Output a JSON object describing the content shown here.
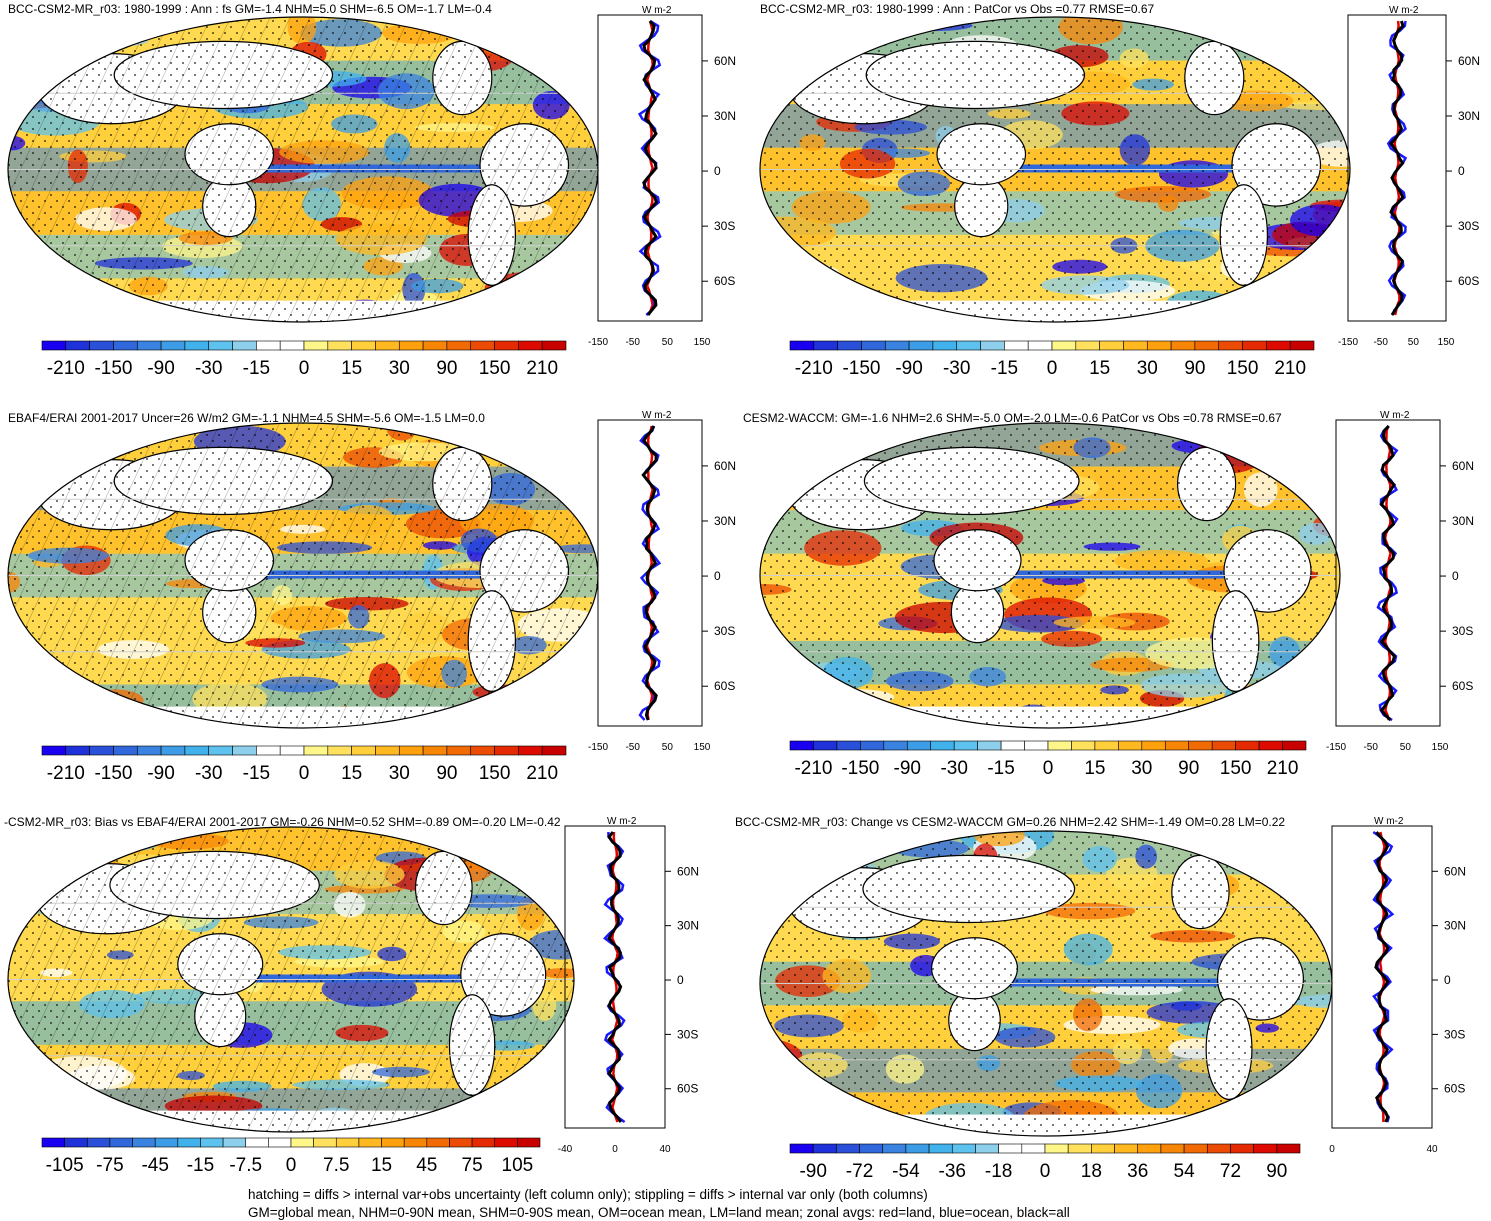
{
  "figure": {
    "panels": [
      {
        "title": "BCC-CSM2-MR_r03: 1980-1999 : Ann : fs GM=-1.4 NHM=5.0 SHM=-6.5 OM=-1.7 LM=-0.4",
        "colorbar_labels": [
          "-210",
          "-150",
          "-90",
          "-30",
          "-15",
          "0",
          "15",
          "30",
          "90",
          "150",
          "210"
        ],
        "hatched": true
      },
      {
        "title": "BCC-CSM2-MR_r03: 1980-1999 : Ann : PatCor vs Obs =0.77 RMSE=0.67",
        "colorbar_labels": [
          "-210",
          "-150",
          "-90",
          "-30",
          "-15",
          "0",
          "15",
          "30",
          "90",
          "150",
          "210"
        ],
        "hatched": false
      },
      {
        "title": "EBAF4/ERAI 2001-2017 Uncer=26 W/m2 GM=-1.1 NHM=4.5 SHM=-5.6 OM=-1.5 LM=0.0",
        "colorbar_labels": [
          "-210",
          "-150",
          "-90",
          "-30",
          "-15",
          "0",
          "15",
          "30",
          "90",
          "150",
          "210"
        ],
        "hatched": true
      },
      {
        "title": "CESM2-WACCM: GM=-1.6 NHM=2.6 SHM=-5.0 OM=-2.0 LM=-0.6 PatCor vs Obs =0.78 RMSE=0.67",
        "colorbar_labels": [
          "-210",
          "-150",
          "-90",
          "-30",
          "-15",
          "0",
          "15",
          "30",
          "90",
          "150",
          "210"
        ],
        "hatched": false
      },
      {
        "title": "-CSM2-MR_r03: Bias vs EBAF4/ERAI 2001-2017 GM=-0.26 NHM=0.52 SHM=-0.89 OM=-0.20 LM=-0.42",
        "colorbar_labels": [
          "-105",
          "-75",
          "-45",
          "-15",
          "-7.5",
          "0",
          "7.5",
          "15",
          "45",
          "75",
          "105"
        ],
        "hatched": true
      },
      {
        "title": "BCC-CSM2-MR_r03: Change vs CESM2-WACCM GM=0.26 NHM=2.42 SHM=-1.49 OM=0.28 LM=0.22",
        "colorbar_labels": [
          "-90",
          "-72",
          "-54",
          "-36",
          "-18",
          "0",
          "18",
          "36",
          "54",
          "72",
          "90"
        ],
        "hatched": false
      }
    ],
    "colorbar_colors": [
      "#1a00f0",
      "#1f32d9",
      "#2a4fd8",
      "#3068dc",
      "#3a83e0",
      "#3c9de6",
      "#41b2ec",
      "#5ec2ee",
      "#8ecfec",
      "#ffffff",
      "#ffffff",
      "#fff68a",
      "#ffe15e",
      "#ffcf3c",
      "#ffb81f",
      "#ffa10d",
      "#f88606",
      "#f26a04",
      "#eb4b02",
      "#e52a01",
      "#dd0a00",
      "#c80000"
    ],
    "zonal_units": "W m-2",
    "zonal_lat_labels": [
      "60N",
      "30N",
      "0",
      "30S",
      "60S"
    ],
    "zonal_x_labels_main": [
      "-150",
      "-50",
      "50",
      "150"
    ],
    "zonal_x_labels_bias": [
      "-40",
      "0",
      "40"
    ],
    "zonal_x_labels_change": [
      "0",
      "40"
    ],
    "legend": {
      "land": "red",
      "ocean": "blue",
      "all": "black"
    },
    "footer_line1": "hatching = diffs > internal var+obs uncertainty (left column only); stippling = diffs > internal var only (both columns)",
    "footer_line2": "GM=global mean, NHM=0-90N mean, SHM=0-90S mean, OM=ocean mean, LM=land mean; zonal avgs: red=land, blue=ocean, black=all"
  }
}
